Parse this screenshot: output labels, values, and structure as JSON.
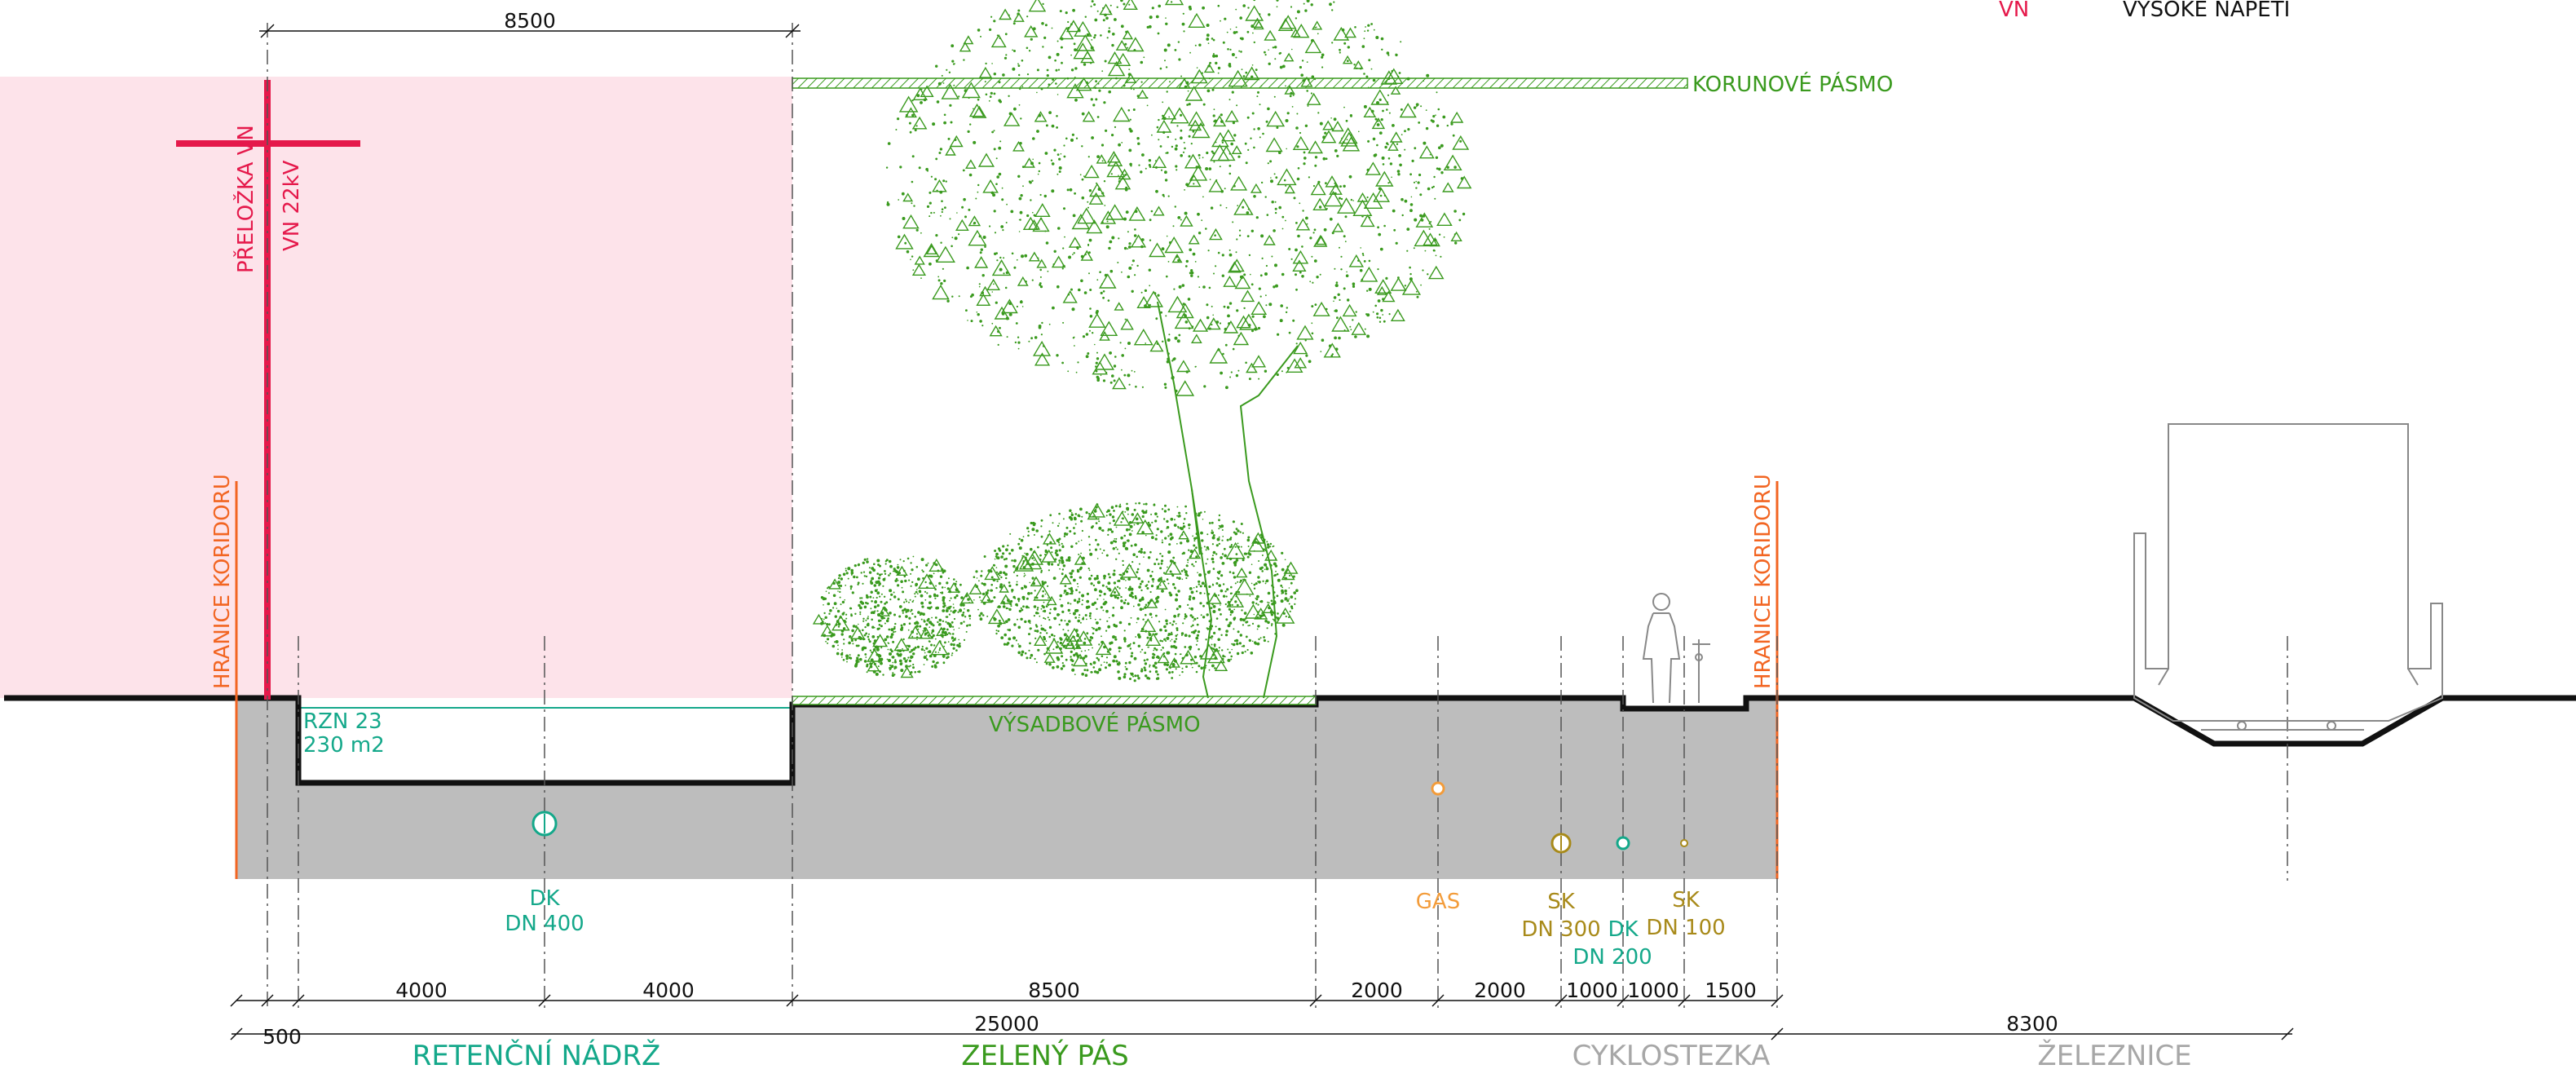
{
  "legend": {
    "code": "VN",
    "description": "VYSOKÉ NAPĚTÍ",
    "code_color": "#e5194b"
  },
  "colors": {
    "corridor": "#f26522",
    "power": "#e5194b",
    "power_zone": "#fde3ea",
    "green": "#3a9a1e",
    "teal": "#14a88a",
    "orange": "#f39c3a",
    "brown": "#a88a1a",
    "grey_label": "#a7a7a7",
    "ground_fill": "#bdbdbd"
  },
  "labels": {
    "corridor_left": "HRANICE KORIDORU",
    "corridor_right": "HRANICE KORIDORU",
    "power_line_1": "PŘELOŽKA VN",
    "power_line_2": "VN  22kV",
    "crown_zone": "KORUNOVÉ PÁSMO",
    "planting_zone": "VÝSADBOVÉ PÁSMO",
    "tank_1": "RZN 23",
    "tank_2": "230 m2"
  },
  "utilities": {
    "dk400": {
      "name": "DK",
      "size": "DN 400"
    },
    "gas": {
      "name": "GAS"
    },
    "sk300": {
      "name": "SK",
      "size": "DN 300"
    },
    "dk200": {
      "name": "DK",
      "size": "DN 200"
    },
    "sk100": {
      "name": "SK",
      "size": "DN 100"
    }
  },
  "dimensions": {
    "top": "8500",
    "row1": [
      "4000",
      "4000",
      "8500",
      "2000",
      "2000",
      "1000",
      "1000",
      "1500"
    ],
    "row2": {
      "small": "500",
      "middle": "25000",
      "rail": "8300"
    }
  },
  "sections": {
    "retention": "RETENČNÍ NÁDRŽ",
    "green_strip": "ZELENÝ PÁS",
    "cycle": "CYKLOSTEZKA",
    "railway": "ŽELEZNICE"
  }
}
